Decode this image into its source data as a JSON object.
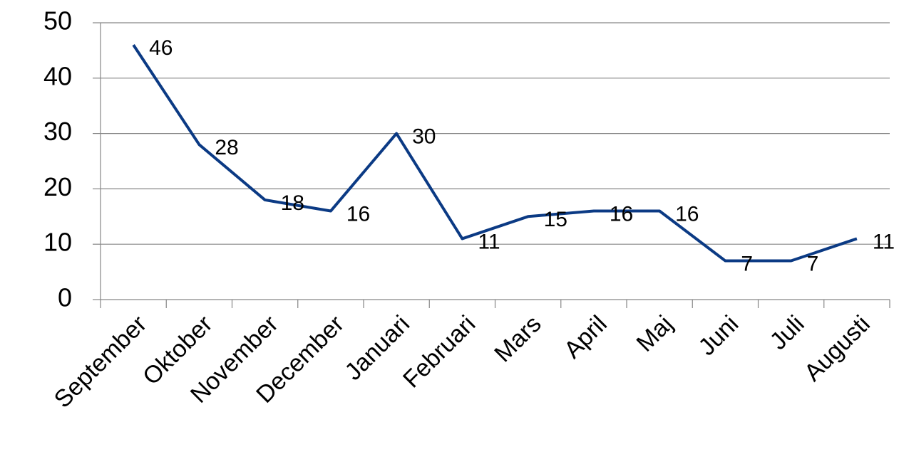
{
  "chart_data": {
    "type": "line",
    "categories": [
      "September",
      "Oktober",
      "November",
      "December",
      "Januari",
      "Februari",
      "Mars",
      "April",
      "Maj",
      "Juni",
      "Juli",
      "Augusti"
    ],
    "series": [
      {
        "color": "#0b3a84",
        "values": [
          46,
          28,
          18,
          16,
          30,
          11,
          15,
          16,
          16,
          7,
          7,
          11
        ]
      }
    ],
    "ylim": [
      0,
      50
    ],
    "yticks": [
      0,
      10,
      20,
      30,
      40,
      50
    ],
    "grid": true
  }
}
